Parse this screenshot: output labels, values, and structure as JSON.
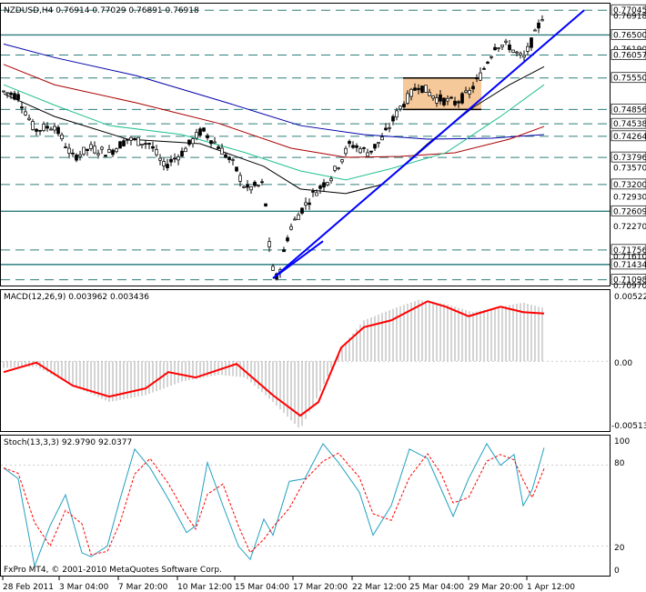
{
  "header": {
    "symbol_line": "NZDUSD,H4  0.76914 0.77029 0.76891 0.76918"
  },
  "macd": {
    "title": "MACD(12,26,9) 0.003962 0.003436",
    "ticks": [
      "0.00522",
      "0.00",
      "-0.00513"
    ]
  },
  "stoch": {
    "title": "Stoch(13,3,3) 92.9790 92.0377",
    "ticks": [
      "100",
      "80",
      "20",
      "0"
    ]
  },
  "footer": {
    "copyright": "FxPro MT4, © 2001-2010 MetaQuotes Software Corp."
  },
  "colors": {
    "grid_line": "#2e7d7d",
    "fill_band": "#f6c99a",
    "trend_line": "#0000ff",
    "macd_signal": "#ff0000",
    "candle_up": "#ffffff",
    "candle_down": "#000000"
  },
  "chart_data": {
    "type": "candlestick",
    "symbol": "NZDUSD",
    "timeframe": "H4",
    "x_labels": [
      "28 Feb 2011",
      "3 Mar 04:00",
      "7 Mar 20:00",
      "10 Mar 12:00",
      "15 Mar 04:00",
      "17 Mar 20:00",
      "22 Mar 12:00",
      "25 Mar 04:00",
      "29 Mar 20:00",
      "1 Apr 12:00"
    ],
    "price_axis_labels": [
      "0.77045",
      "0.76918",
      "0.76500",
      "0.76190",
      "0.76057",
      "0.75550",
      "0.74856",
      "0.74538",
      "0.74264",
      "0.73796",
      "0.73570",
      "0.73200",
      "0.72930",
      "0.72609",
      "0.72270",
      "0.71756",
      "0.71610",
      "0.71434",
      "0.71098",
      "0.70970"
    ],
    "price_range": [
      0.7097,
      0.7719
    ],
    "horizontal_levels": [
      0.77045,
      0.765,
      0.76057,
      0.7555,
      0.74856,
      0.74538,
      0.74264,
      0.73796,
      0.732,
      0.72609,
      0.71756,
      0.71434,
      0.71098
    ],
    "solid_levels": [
      0.765,
      0.72609,
      0.71434
    ],
    "consolidation_box": {
      "price_top": 0.7555,
      "price_bottom": 0.74856
    },
    "macd_range": [
      -0.00513,
      0.00522
    ],
    "stoch_range": [
      0,
      100
    ]
  }
}
